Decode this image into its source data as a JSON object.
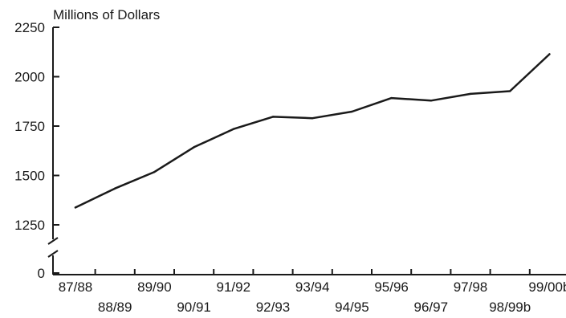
{
  "chart_data": {
    "type": "line",
    "ylabel": "Millions of Dollars",
    "categories": [
      "87/88",
      "88/89",
      "89/90",
      "90/91",
      "91/92",
      "92/93",
      "93/94",
      "94/95",
      "95/96",
      "96/97",
      "97/98",
      "98/99b",
      "99/00b"
    ],
    "series": [
      {
        "values": [
          1338,
          1434,
          1518,
          1643,
          1735,
          1797,
          1790,
          1823,
          1892,
          1879,
          1913,
          1927,
          2114
        ]
      }
    ],
    "ylim": [
      1250,
      2250
    ],
    "yticks": [
      0,
      1250,
      1500,
      1750,
      2000,
      2250
    ],
    "y_axis_break": true,
    "grid": false,
    "line_color": "#1a1a1a"
  }
}
